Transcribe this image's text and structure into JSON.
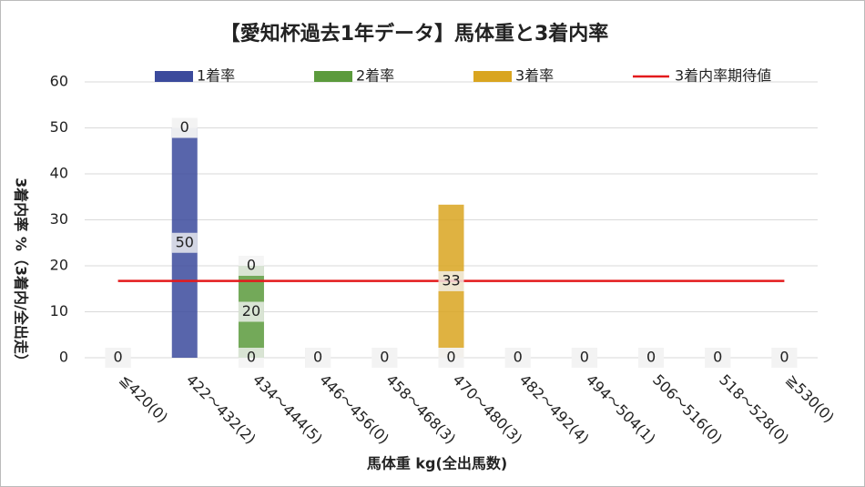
{
  "chart_data": {
    "type": "bar",
    "stacked": true,
    "title": "【愛知杯過去1年データ】馬体重と3着内率",
    "x_label": "馬体重 kg(全出馬数)",
    "y_label": "3着内率 %（3着内/全出走）",
    "categories": [
      "≦420(0)",
      "422～432(2)",
      "434～444(5)",
      "446～456(0)",
      "458～468(3)",
      "470～480(3)",
      "482～492(4)",
      "494～504(1)",
      "506～516(0)",
      "518～528(0)",
      "≧530(0)"
    ],
    "series": [
      {
        "name": "1着率",
        "color": "#3b4a9c",
        "values": [
          0,
          50,
          0,
          0,
          0,
          0,
          0,
          0,
          0,
          0,
          0
        ]
      },
      {
        "name": "2着率",
        "color": "#5b9a3c",
        "values": [
          0,
          0,
          20,
          0,
          0,
          0,
          0,
          0,
          0,
          0,
          0
        ]
      },
      {
        "name": "3着率",
        "color": "#d9a520",
        "values": [
          0,
          0,
          0,
          0,
          0,
          33.3,
          0,
          0,
          0,
          0,
          0
        ],
        "value_labels": [
          "0",
          "0",
          "0",
          "0",
          "0",
          "33",
          "0",
          "0",
          "0",
          "0",
          "0"
        ]
      },
      {
        "name": "3着内率期待値",
        "type": "line",
        "color": "#e31a1c",
        "values": [
          16.7,
          16.7,
          16.7,
          16.7,
          16.7,
          16.7,
          16.7,
          16.7,
          16.7,
          16.7,
          16.7
        ]
      }
    ],
    "ylim": [
      0,
      60
    ],
    "yticks": [
      0,
      10,
      20,
      30,
      40,
      50,
      60
    ],
    "grid": true,
    "legend": "top"
  }
}
